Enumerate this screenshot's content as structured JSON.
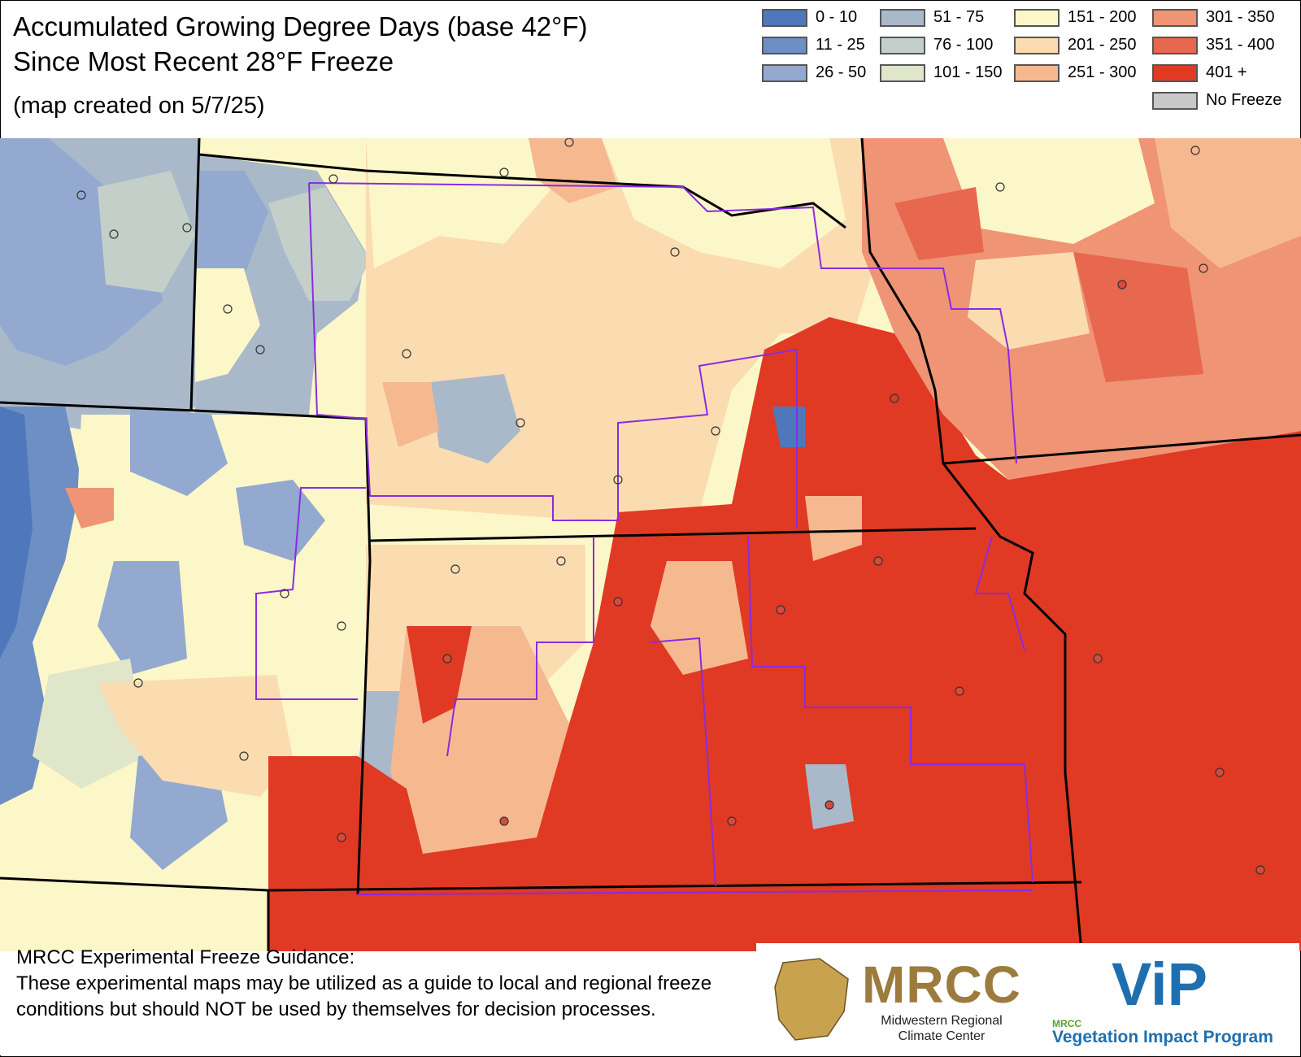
{
  "title": {
    "line1": "Accumulated Growing Degree Days (base 42°F)",
    "line2": "Since Most Recent 28°F Freeze",
    "created": "(map created on 5/7/25)"
  },
  "legend": [
    {
      "label": "0 - 10",
      "color": "#4e78bb"
    },
    {
      "label": "11 - 25",
      "color": "#6d8fc4"
    },
    {
      "label": "26 - 50",
      "color": "#93a9cf"
    },
    {
      "label": "51 - 75",
      "color": "#a9b9c9"
    },
    {
      "label": "76 - 100",
      "color": "#c4cfc9"
    },
    {
      "label": "101 - 150",
      "color": "#dfe6c9"
    },
    {
      "label": "151 - 200",
      "color": "#fcf7c8"
    },
    {
      "label": "201 - 250",
      "color": "#fbdcb1"
    },
    {
      "label": "251 - 300",
      "color": "#f6b98f"
    },
    {
      "label": "301 - 350",
      "color": "#ef9474"
    },
    {
      "label": "351 - 400",
      "color": "#e8674f"
    },
    {
      "label": "401 +",
      "color": "#e03a24"
    },
    {
      "label": "No Freeze",
      "color": "#c8c8c8"
    }
  ],
  "disclaimer": {
    "heading": "MRCC Experimental Freeze Guidance:",
    "body": "These experimental maps may be utilized as a guide to local and regional freeze conditions but should NOT be used by themselves for decision processes."
  },
  "logos": {
    "mrcc_word": "MRCC",
    "mrcc_sub": "Midwestern Regional Climate Center",
    "vip_word": "ViP",
    "vip_small": "MRCC",
    "vip_sub": "Vegetation Impact Program"
  }
}
